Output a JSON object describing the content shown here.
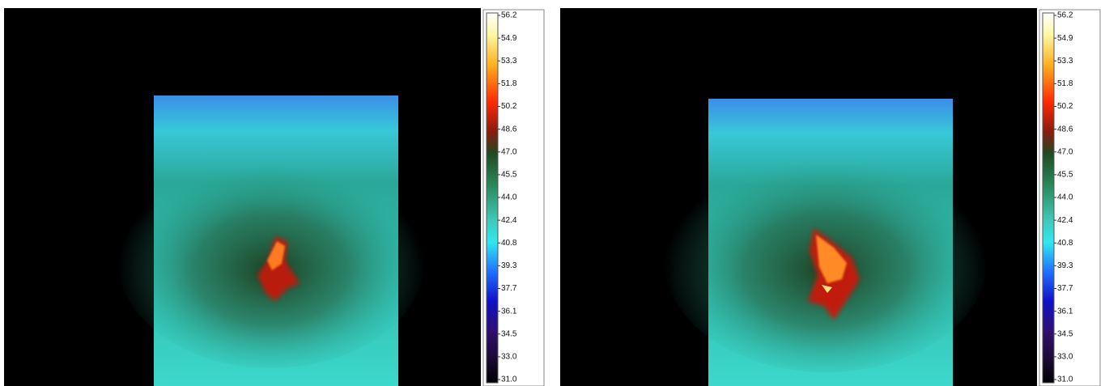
{
  "panels": [
    {
      "scale": [
        "56.2",
        "54.9",
        "53.3",
        "51.8",
        "50.2",
        "48.6",
        "47.0",
        "45.5",
        "44.0",
        "42.4",
        "40.8",
        "39.3",
        "37.7",
        "36.1",
        "34.5",
        "33.0",
        "31.0"
      ]
    },
    {
      "scale": [
        "56.2",
        "54.9",
        "53.3",
        "51.8",
        "50.2",
        "48.6",
        "47.0",
        "45.5",
        "44.0",
        "42.4",
        "40.8",
        "39.3",
        "37.7",
        "36.1",
        "34.5",
        "33.0",
        "31.0"
      ]
    }
  ]
}
